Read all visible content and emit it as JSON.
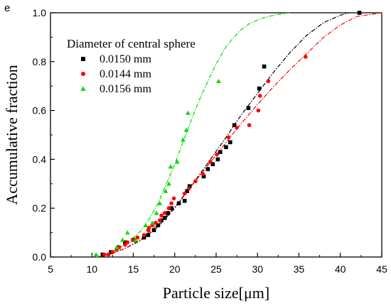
{
  "chart_data": {
    "type": "scatter",
    "panel_label": "e",
    "xlabel": "Particle size[μm]",
    "ylabel": "Accumulative fraction",
    "xlim": [
      5,
      45
    ],
    "ylim": [
      0.0,
      1.0
    ],
    "xticks": [
      "5",
      "10",
      "15",
      "20",
      "25",
      "30",
      "35",
      "40",
      "45"
    ],
    "yticks": [
      "0.0",
      "0.2",
      "0.4",
      "0.6",
      "0.8",
      "1.0"
    ],
    "grid": false,
    "legend": {
      "title": "Diameter of central sphere",
      "placement": "top-left"
    },
    "series": [
      {
        "name": "0.0150 mm",
        "color": "#000000",
        "marker": "square",
        "points": [
          [
            11.3,
            0.01
          ],
          [
            12.3,
            0.02
          ],
          [
            13.2,
            0.04
          ],
          [
            14.0,
            0.06
          ],
          [
            15.0,
            0.07
          ],
          [
            16.3,
            0.08
          ],
          [
            16.8,
            0.09
          ],
          [
            17.5,
            0.11
          ],
          [
            18.0,
            0.13
          ],
          [
            18.4,
            0.15
          ],
          [
            18.8,
            0.16
          ],
          [
            19.2,
            0.18
          ],
          [
            19.6,
            0.2
          ],
          [
            20.5,
            0.22
          ],
          [
            21.2,
            0.23
          ],
          [
            21.5,
            0.27
          ],
          [
            21.8,
            0.29
          ],
          [
            23.5,
            0.33
          ],
          [
            24.0,
            0.36
          ],
          [
            24.6,
            0.38
          ],
          [
            25.2,
            0.4
          ],
          [
            25.5,
            0.43
          ],
          [
            26.2,
            0.45
          ],
          [
            26.7,
            0.47
          ],
          [
            27.2,
            0.54
          ],
          [
            28.9,
            0.61
          ],
          [
            30.2,
            0.69
          ],
          [
            30.8,
            0.78
          ],
          [
            42.3,
            1.0
          ]
        ],
        "fit": [
          [
            10.5,
            0.0
          ],
          [
            12,
            0.01
          ],
          [
            14,
            0.035
          ],
          [
            16,
            0.07
          ],
          [
            18,
            0.125
          ],
          [
            20,
            0.2
          ],
          [
            22,
            0.29
          ],
          [
            24,
            0.385
          ],
          [
            26,
            0.48
          ],
          [
            28,
            0.58
          ],
          [
            30,
            0.67
          ],
          [
            32,
            0.76
          ],
          [
            34,
            0.84
          ],
          [
            36,
            0.91
          ],
          [
            38,
            0.96
          ],
          [
            40,
            0.99
          ],
          [
            41,
            1.0
          ]
        ]
      },
      {
        "name": "0.0144 mm",
        "color": "#ff0000",
        "marker": "circle",
        "points": [
          [
            11.5,
            0.01
          ],
          [
            12.0,
            0.01
          ],
          [
            12.5,
            0.02
          ],
          [
            13.0,
            0.03
          ],
          [
            13.3,
            0.04
          ],
          [
            14.0,
            0.05
          ],
          [
            14.3,
            0.06
          ],
          [
            15.0,
            0.07
          ],
          [
            15.5,
            0.08
          ],
          [
            16.3,
            0.09
          ],
          [
            16.8,
            0.11
          ],
          [
            16.9,
            0.12
          ],
          [
            17.3,
            0.13
          ],
          [
            17.7,
            0.14
          ],
          [
            18.2,
            0.15
          ],
          [
            18.4,
            0.17
          ],
          [
            18.8,
            0.18
          ],
          [
            19.3,
            0.2
          ],
          [
            19.6,
            0.22
          ],
          [
            19.9,
            0.24
          ],
          [
            21.2,
            0.26
          ],
          [
            21.7,
            0.28
          ],
          [
            22.5,
            0.31
          ],
          [
            23.4,
            0.34
          ],
          [
            24.3,
            0.39
          ],
          [
            25.1,
            0.42
          ],
          [
            26.5,
            0.49
          ],
          [
            27.5,
            0.53
          ],
          [
            29.0,
            0.54
          ],
          [
            30.1,
            0.6
          ],
          [
            30.3,
            0.66
          ],
          [
            31.3,
            0.72
          ],
          [
            35.8,
            0.82
          ]
        ],
        "fit": [
          [
            10.5,
            0.0
          ],
          [
            12,
            0.01
          ],
          [
            14,
            0.035
          ],
          [
            16,
            0.075
          ],
          [
            18,
            0.135
          ],
          [
            20,
            0.205
          ],
          [
            22,
            0.29
          ],
          [
            24,
            0.375
          ],
          [
            26,
            0.46
          ],
          [
            28,
            0.545
          ],
          [
            30,
            0.625
          ],
          [
            32,
            0.7
          ],
          [
            34,
            0.77
          ],
          [
            36,
            0.835
          ],
          [
            38,
            0.9
          ],
          [
            40,
            0.95
          ],
          [
            42,
            0.985
          ],
          [
            45,
            1.0
          ]
        ]
      },
      {
        "name": "0.0156 mm",
        "color": "#00dd00",
        "marker": "triangle",
        "points": [
          [
            10.5,
            0.01
          ],
          [
            13.0,
            0.04
          ],
          [
            13.7,
            0.07
          ],
          [
            14.3,
            0.1
          ],
          [
            15.3,
            0.07
          ],
          [
            16.5,
            0.13
          ],
          [
            17.3,
            0.14
          ],
          [
            17.8,
            0.18
          ],
          [
            18.2,
            0.22
          ],
          [
            18.9,
            0.27
          ],
          [
            19.3,
            0.3
          ],
          [
            19.5,
            0.37
          ],
          [
            20.3,
            0.39
          ],
          [
            21.0,
            0.48
          ],
          [
            21.4,
            0.52
          ],
          [
            21.6,
            0.59
          ],
          [
            25.3,
            0.72
          ]
        ],
        "fit": [
          [
            10.5,
            0.0
          ],
          [
            12,
            0.015
          ],
          [
            14,
            0.05
          ],
          [
            16,
            0.11
          ],
          [
            17,
            0.16
          ],
          [
            18,
            0.22
          ],
          [
            19,
            0.3
          ],
          [
            20,
            0.38
          ],
          [
            21,
            0.47
          ],
          [
            22,
            0.56
          ],
          [
            23,
            0.645
          ],
          [
            24,
            0.72
          ],
          [
            25,
            0.79
          ],
          [
            26,
            0.85
          ],
          [
            27,
            0.895
          ],
          [
            28,
            0.93
          ],
          [
            29,
            0.955
          ],
          [
            30,
            0.97
          ],
          [
            31,
            0.982
          ],
          [
            32,
            0.99
          ],
          [
            33,
            0.996
          ],
          [
            34,
            1.0
          ]
        ]
      }
    ]
  }
}
